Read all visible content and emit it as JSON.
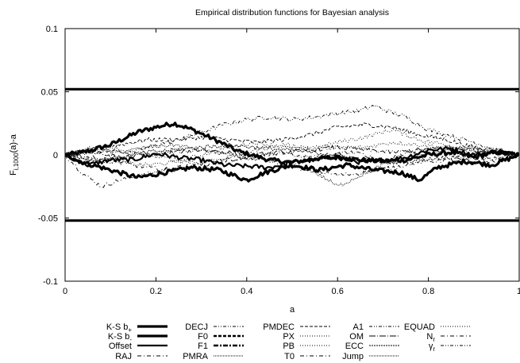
{
  "chart_data": {
    "type": "line",
    "title": "Empirical distribution functions for Bayesian analysis",
    "xlabel": "a",
    "ylabel": "F",
    "ylabel_sub": "i,1000",
    "ylabel_rest": "(a)-a",
    "xlim": [
      0,
      1
    ],
    "ylim": [
      -0.1,
      0.1
    ],
    "xticks": [
      {
        "value": 0,
        "label": "0"
      },
      {
        "value": 0.2,
        "label": "0.2"
      },
      {
        "value": 0.4,
        "label": "0.4"
      },
      {
        "value": 0.6,
        "label": "0.6"
      },
      {
        "value": 0.8,
        "label": "0.8"
      },
      {
        "value": 1,
        "label": "1"
      }
    ],
    "yticks": [
      {
        "value": 0.1,
        "label": "0.1"
      },
      {
        "value": 0.05,
        "label": "0.05"
      },
      {
        "value": 0,
        "label": "0"
      },
      {
        "value": -0.05,
        "label": "-0.05"
      },
      {
        "value": -0.1,
        "label": "-0.1"
      }
    ],
    "grid": false,
    "legend_position": "bottom",
    "ks_bounds": {
      "upper": 0.052,
      "lower": -0.052
    },
    "legend": [
      {
        "label": "K-S b",
        "sub": "+",
        "style": "thick"
      },
      {
        "label": "K-S b",
        "sub": "-",
        "style": "thick"
      },
      {
        "label": "Offset",
        "sub": "",
        "style": "solid"
      },
      {
        "label": "RAJ",
        "sub": "",
        "style": "dashdot"
      },
      {
        "label": "DECJ",
        "sub": "",
        "style": "dashdotdot"
      },
      {
        "label": "F0",
        "sub": "",
        "style": "thickdash"
      },
      {
        "label": "F1",
        "sub": "",
        "style": "thickdashdot"
      },
      {
        "label": "PMRA",
        "sub": "",
        "style": "dense"
      },
      {
        "label": "PMDEC",
        "sub": "",
        "style": "dash"
      },
      {
        "label": "PX",
        "sub": "",
        "style": "dot"
      },
      {
        "label": "PB",
        "sub": "",
        "style": "dot"
      },
      {
        "label": "T0",
        "sub": "",
        "style": "dashdot"
      },
      {
        "label": "A1",
        "sub": "",
        "style": "dashdotdot"
      },
      {
        "label": "OM",
        "sub": "",
        "style": "longdashdot"
      },
      {
        "label": "ECC",
        "sub": "",
        "style": "densedot"
      },
      {
        "label": "Jump",
        "sub": "",
        "style": "dense"
      },
      {
        "label": "EQUAD",
        "sub": "",
        "style": "dot"
      },
      {
        "label": "N",
        "sub": "r",
        "style": "dashdot"
      },
      {
        "label": "γ",
        "sub": "r",
        "style": "dashdotdot"
      }
    ],
    "series": [
      {
        "style": "thick",
        "key_points": [
          [
            0,
            0
          ],
          [
            0.04,
            0.002
          ],
          [
            0.1,
            0.008
          ],
          [
            0.16,
            0.018
          ],
          [
            0.2,
            0.022
          ],
          [
            0.24,
            0.025
          ],
          [
            0.28,
            0.02
          ],
          [
            0.33,
            0.012
          ],
          [
            0.38,
            0.003
          ],
          [
            0.45,
            -0.004
          ],
          [
            0.5,
            -0.006
          ],
          [
            0.55,
            -0.003
          ],
          [
            0.6,
            -0.002
          ],
          [
            0.65,
            -0.004
          ],
          [
            0.7,
            -0.005
          ],
          [
            0.75,
            -0.004
          ],
          [
            0.8,
            0
          ],
          [
            0.85,
            0.002
          ],
          [
            0.9,
            -0.002
          ],
          [
            0.95,
            0.002
          ],
          [
            1,
            0
          ]
        ]
      },
      {
        "style": "thick",
        "key_points": [
          [
            0,
            0
          ],
          [
            0.04,
            -0.006
          ],
          [
            0.1,
            -0.012
          ],
          [
            0.16,
            -0.018
          ],
          [
            0.22,
            -0.014
          ],
          [
            0.28,
            -0.01
          ],
          [
            0.34,
            -0.012
          ],
          [
            0.4,
            -0.02
          ],
          [
            0.44,
            -0.014
          ],
          [
            0.5,
            -0.008
          ],
          [
            0.56,
            -0.012
          ],
          [
            0.62,
            -0.008
          ],
          [
            0.68,
            -0.012
          ],
          [
            0.74,
            -0.014
          ],
          [
            0.78,
            -0.02
          ],
          [
            0.82,
            -0.01
          ],
          [
            0.88,
            -0.005
          ],
          [
            0.94,
            -0.008
          ],
          [
            1,
            0
          ]
        ]
      },
      {
        "style": "solid",
        "key_points": [
          [
            0,
            0
          ],
          [
            0.05,
            -0.008
          ],
          [
            0.1,
            -0.004
          ],
          [
            0.15,
            -0.004
          ],
          [
            0.2,
            0.001
          ],
          [
            0.25,
            -0.002
          ],
          [
            0.3,
            -0.004
          ],
          [
            0.35,
            -0.008
          ],
          [
            0.4,
            -0.009
          ],
          [
            0.45,
            -0.01
          ],
          [
            0.5,
            -0.006
          ],
          [
            0.55,
            -0.004
          ],
          [
            0.6,
            -0.001
          ],
          [
            0.65,
            -0.006
          ],
          [
            0.7,
            -0.004
          ],
          [
            0.75,
            -0.002
          ],
          [
            0.8,
            0.004
          ],
          [
            0.85,
            0.005
          ],
          [
            0.9,
            0.0
          ],
          [
            0.95,
            0.003
          ],
          [
            1,
            0
          ]
        ]
      },
      {
        "style": "dashdot",
        "key_points": [
          [
            0,
            0
          ],
          [
            0.04,
            -0.015
          ],
          [
            0.08,
            -0.025
          ],
          [
            0.12,
            -0.02
          ],
          [
            0.18,
            -0.015
          ],
          [
            0.25,
            -0.01
          ],
          [
            0.3,
            -0.006
          ],
          [
            0.35,
            -0.004
          ],
          [
            0.4,
            -0.002
          ],
          [
            0.45,
            0.001
          ],
          [
            0.5,
            0.0
          ],
          [
            0.55,
            -0.002
          ],
          [
            0.6,
            0.001
          ],
          [
            0.65,
            0.002
          ],
          [
            0.7,
            -0.006
          ],
          [
            0.75,
            0.002
          ],
          [
            0.8,
            0.004
          ],
          [
            0.85,
            0.0
          ],
          [
            0.9,
            -0.006
          ],
          [
            0.95,
            -0.004
          ],
          [
            1,
            0
          ]
        ]
      },
      {
        "style": "dashdotdot",
        "key_points": [
          [
            0,
            0
          ],
          [
            0.05,
            0.002
          ],
          [
            0.1,
            0.003
          ],
          [
            0.15,
            0.002
          ],
          [
            0.2,
            0.008
          ],
          [
            0.25,
            0.012
          ],
          [
            0.3,
            0.018
          ],
          [
            0.35,
            0.024
          ],
          [
            0.4,
            0.028
          ],
          [
            0.45,
            0.03
          ],
          [
            0.5,
            0.028
          ],
          [
            0.55,
            0.03
          ],
          [
            0.6,
            0.033
          ],
          [
            0.65,
            0.035
          ],
          [
            0.68,
            0.039
          ],
          [
            0.7,
            0.036
          ],
          [
            0.75,
            0.03
          ],
          [
            0.8,
            0.02
          ],
          [
            0.85,
            0.015
          ],
          [
            0.9,
            0.01
          ],
          [
            0.95,
            0.004
          ],
          [
            1,
            0
          ]
        ]
      },
      {
        "style": "dash",
        "key_points": [
          [
            0,
            0
          ],
          [
            0.06,
            0.004
          ],
          [
            0.12,
            0.008
          ],
          [
            0.18,
            0.012
          ],
          [
            0.24,
            0.012
          ],
          [
            0.3,
            0.014
          ],
          [
            0.36,
            0.012
          ],
          [
            0.42,
            0.01
          ],
          [
            0.48,
            0.012
          ],
          [
            0.54,
            0.016
          ],
          [
            0.6,
            0.022
          ],
          [
            0.66,
            0.024
          ],
          [
            0.72,
            0.022
          ],
          [
            0.78,
            0.016
          ],
          [
            0.84,
            0.012
          ],
          [
            0.9,
            0.006
          ],
          [
            0.96,
            0.002
          ],
          [
            1,
            0
          ]
        ]
      },
      {
        "style": "dot",
        "key_points": [
          [
            0,
            0
          ],
          [
            0.06,
            -0.004
          ],
          [
            0.12,
            -0.006
          ],
          [
            0.18,
            -0.008
          ],
          [
            0.24,
            -0.006
          ],
          [
            0.3,
            0.0
          ],
          [
            0.36,
            0.006
          ],
          [
            0.42,
            0.01
          ],
          [
            0.48,
            0.006
          ],
          [
            0.54,
            0.004
          ],
          [
            0.6,
            0.01
          ],
          [
            0.66,
            0.014
          ],
          [
            0.72,
            0.02
          ],
          [
            0.78,
            0.012
          ],
          [
            0.84,
            0.008
          ],
          [
            0.9,
            0.004
          ],
          [
            0.96,
            0.002
          ],
          [
            1,
            0
          ]
        ]
      },
      {
        "style": "dot",
        "key_points": [
          [
            0,
            0
          ],
          [
            0.06,
            0.006
          ],
          [
            0.12,
            0.004
          ],
          [
            0.18,
            0.0
          ],
          [
            0.24,
            -0.004
          ],
          [
            0.3,
            -0.006
          ],
          [
            0.36,
            -0.002
          ],
          [
            0.42,
            0.004
          ],
          [
            0.48,
            0.008
          ],
          [
            0.54,
            0.006
          ],
          [
            0.6,
            0.006
          ],
          [
            0.66,
            0.006
          ],
          [
            0.72,
            0.01
          ],
          [
            0.78,
            0.008
          ],
          [
            0.84,
            0.006
          ],
          [
            0.9,
            0.002
          ],
          [
            0.96,
            0.0
          ],
          [
            1,
            0
          ]
        ]
      },
      {
        "style": "dashdot",
        "key_points": [
          [
            0,
            0
          ],
          [
            0.06,
            -0.002
          ],
          [
            0.12,
            -0.006
          ],
          [
            0.18,
            -0.01
          ],
          [
            0.24,
            -0.012
          ],
          [
            0.3,
            -0.008
          ],
          [
            0.36,
            -0.004
          ],
          [
            0.42,
            -0.002
          ],
          [
            0.48,
            -0.008
          ],
          [
            0.54,
            -0.012
          ],
          [
            0.6,
            -0.016
          ],
          [
            0.66,
            -0.014
          ],
          [
            0.72,
            -0.01
          ],
          [
            0.78,
            -0.006
          ],
          [
            0.84,
            -0.004
          ],
          [
            0.9,
            -0.004
          ],
          [
            0.96,
            -0.002
          ],
          [
            1,
            0
          ]
        ]
      },
      {
        "style": "dense",
        "key_points": [
          [
            0,
            0
          ],
          [
            0.06,
            0.004
          ],
          [
            0.12,
            0.002
          ],
          [
            0.18,
            0.006
          ],
          [
            0.24,
            0.008
          ],
          [
            0.3,
            0.004
          ],
          [
            0.36,
            0.0
          ],
          [
            0.42,
            -0.004
          ],
          [
            0.48,
            -0.006
          ],
          [
            0.54,
            -0.012
          ],
          [
            0.58,
            -0.02
          ],
          [
            0.6,
            -0.025
          ],
          [
            0.64,
            -0.018
          ],
          [
            0.7,
            -0.008
          ],
          [
            0.76,
            -0.002
          ],
          [
            0.82,
            0.002
          ],
          [
            0.88,
            0.006
          ],
          [
            0.94,
            0.004
          ],
          [
            1,
            0
          ]
        ]
      },
      {
        "style": "longdashdot",
        "key_points": [
          [
            0,
            0
          ],
          [
            0.06,
            0.002
          ],
          [
            0.12,
            -0.002
          ],
          [
            0.18,
            0.0
          ],
          [
            0.24,
            0.002
          ],
          [
            0.3,
            0.004
          ],
          [
            0.36,
            0.002
          ],
          [
            0.42,
            0.0
          ],
          [
            0.48,
            0.002
          ],
          [
            0.54,
            0.004
          ],
          [
            0.6,
            0.006
          ],
          [
            0.66,
            0.004
          ],
          [
            0.72,
            0.002
          ],
          [
            0.78,
            0.004
          ],
          [
            0.84,
            0.006
          ],
          [
            0.9,
            0.004
          ],
          [
            0.96,
            0.002
          ],
          [
            1,
            0
          ]
        ]
      },
      {
        "style": "densedot",
        "key_points": [
          [
            0,
            0
          ],
          [
            0.06,
            -0.004
          ],
          [
            0.12,
            -0.002
          ],
          [
            0.18,
            0.002
          ],
          [
            0.24,
            0.004
          ],
          [
            0.3,
            0.006
          ],
          [
            0.36,
            0.008
          ],
          [
            0.42,
            0.006
          ],
          [
            0.48,
            0.004
          ],
          [
            0.54,
            0.002
          ],
          [
            0.6,
            0.0
          ],
          [
            0.66,
            -0.004
          ],
          [
            0.72,
            -0.006
          ],
          [
            0.78,
            -0.004
          ],
          [
            0.84,
            -0.002
          ],
          [
            0.9,
            0.0
          ],
          [
            0.96,
            0.002
          ],
          [
            1,
            0
          ]
        ]
      }
    ]
  }
}
